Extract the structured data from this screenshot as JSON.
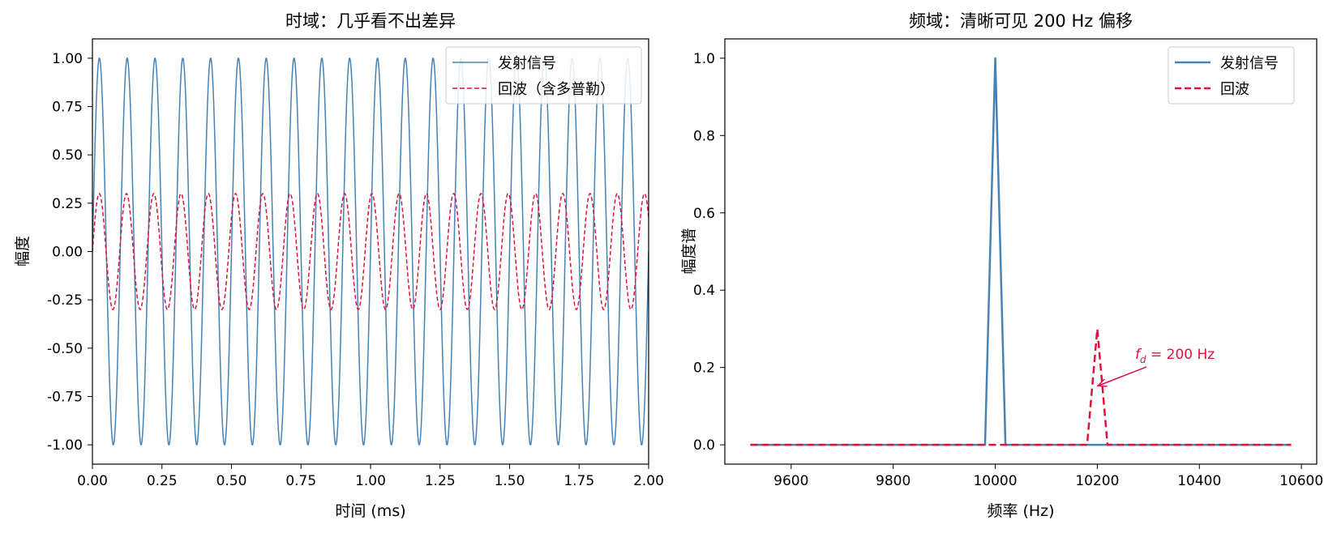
{
  "chart_data": [
    {
      "type": "line",
      "title": "时域：几乎看不出差异",
      "xlabel": "时间 (ms)",
      "ylabel": "幅度",
      "xlim": [
        0,
        2
      ],
      "ylim": [
        -1.1,
        1.1
      ],
      "x_ticks": [
        "0.00",
        "0.25",
        "0.50",
        "0.75",
        "1.00",
        "1.25",
        "1.50",
        "1.75",
        "2.00"
      ],
      "y_ticks": [
        "-1.00",
        "-0.75",
        "-0.50",
        "-0.25",
        "0.00",
        "0.25",
        "0.50",
        "0.75",
        "1.00"
      ],
      "legend_position": "top-right",
      "series": [
        {
          "name": "发射信号",
          "color": "#4682b4",
          "style": "solid",
          "amplitude": 1.0,
          "frequency_hz": 10000
        },
        {
          "name": "回波（含多普勒）",
          "color": "#dc143c",
          "style": "dashed",
          "amplitude": 0.3,
          "frequency_hz": 10200
        }
      ]
    },
    {
      "type": "line",
      "title": "频域：清晰可见 200 Hz 偏移",
      "xlabel": "频率 (Hz)",
      "ylabel": "幅度谱",
      "xlim": [
        9470,
        10630
      ],
      "ylim": [
        -0.05,
        1.05
      ],
      "x_ticks": [
        "9600",
        "9800",
        "10000",
        "10200",
        "10400",
        "10600"
      ],
      "y_ticks": [
        "0.0",
        "0.2",
        "0.4",
        "0.6",
        "0.8",
        "1.0"
      ],
      "legend_position": "top-right",
      "series": [
        {
          "name": "发射信号",
          "color": "#4682b4",
          "style": "solid",
          "x": [
            9520,
            9980,
            10000,
            10020,
            10580
          ],
          "y": [
            0,
            0,
            1.0,
            0,
            0
          ]
        },
        {
          "name": "回波",
          "color": "#dc143c",
          "style": "dashed",
          "x": [
            9520,
            10180,
            10200,
            10220,
            10580
          ],
          "y": [
            0,
            0,
            0.3,
            0,
            0
          ]
        }
      ],
      "annotation": {
        "text_main": "f",
        "text_sub": "d",
        "text_rest": " = 200 Hz",
        "x": 10200,
        "y": 0.15,
        "color": "#dc143c"
      }
    }
  ]
}
